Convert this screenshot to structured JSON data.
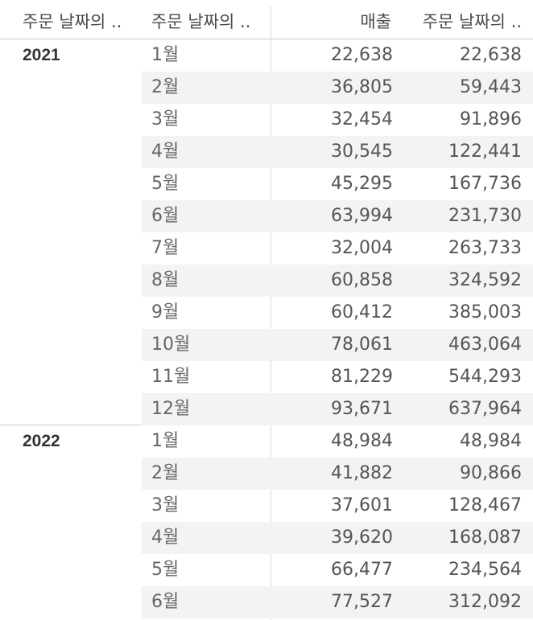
{
  "headers": {
    "year": "주문 날짜의 ..",
    "month": "주문 날짜의 ..",
    "sales": "매출",
    "cumulative": "주문 날짜의 .."
  },
  "groups": [
    {
      "year": "2021",
      "rows": [
        {
          "month": "1월",
          "sales": "22,638",
          "cumulative": "22,638"
        },
        {
          "month": "2월",
          "sales": "36,805",
          "cumulative": "59,443"
        },
        {
          "month": "3월",
          "sales": "32,454",
          "cumulative": "91,896"
        },
        {
          "month": "4월",
          "sales": "30,545",
          "cumulative": "122,441"
        },
        {
          "month": "5월",
          "sales": "45,295",
          "cumulative": "167,736"
        },
        {
          "month": "6월",
          "sales": "63,994",
          "cumulative": "231,730"
        },
        {
          "month": "7월",
          "sales": "32,004",
          "cumulative": "263,733"
        },
        {
          "month": "8월",
          "sales": "60,858",
          "cumulative": "324,592"
        },
        {
          "month": "9월",
          "sales": "60,412",
          "cumulative": "385,003"
        },
        {
          "month": "10월",
          "sales": "78,061",
          "cumulative": "463,064"
        },
        {
          "month": "11월",
          "sales": "81,229",
          "cumulative": "544,293"
        },
        {
          "month": "12월",
          "sales": "93,671",
          "cumulative": "637,964"
        }
      ]
    },
    {
      "year": "2022",
      "rows": [
        {
          "month": "1월",
          "sales": "48,984",
          "cumulative": "48,984"
        },
        {
          "month": "2월",
          "sales": "41,882",
          "cumulative": "90,866"
        },
        {
          "month": "3월",
          "sales": "37,601",
          "cumulative": "128,467"
        },
        {
          "month": "4월",
          "sales": "39,620",
          "cumulative": "168,087"
        },
        {
          "month": "5월",
          "sales": "66,477",
          "cumulative": "234,564"
        },
        {
          "month": "6월",
          "sales": "77,527",
          "cumulative": "312,092"
        }
      ]
    }
  ]
}
